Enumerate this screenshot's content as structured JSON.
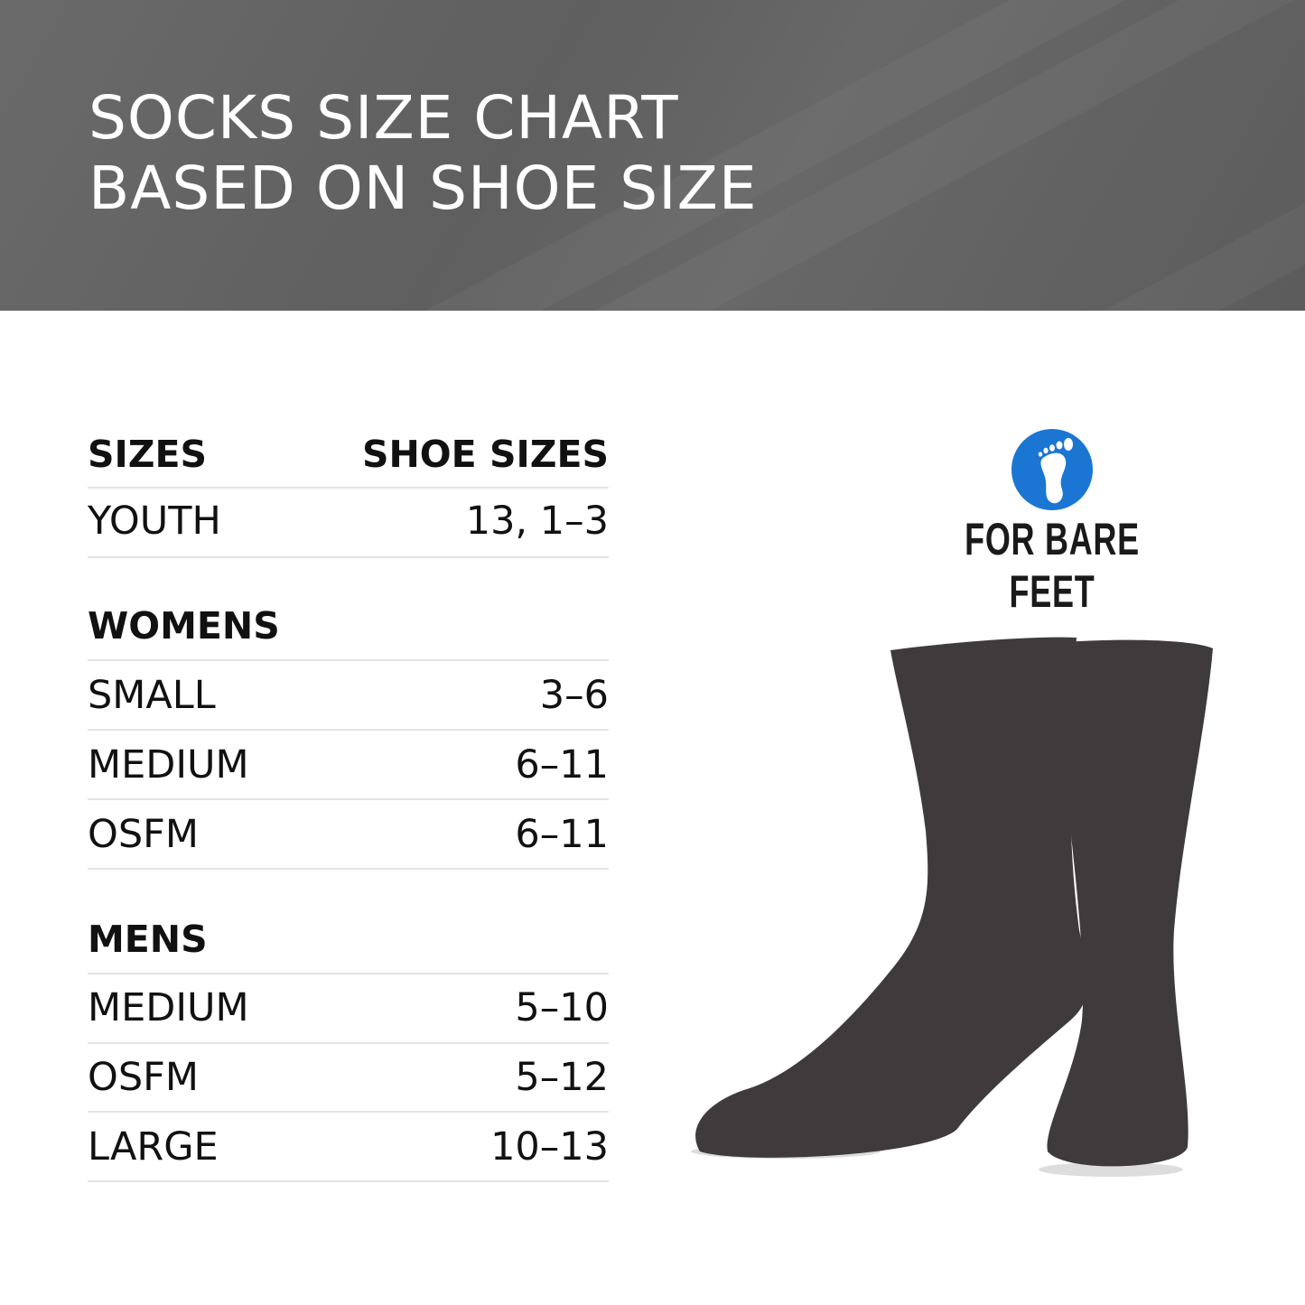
{
  "header": {
    "title_line1": "SOCKS SIZE CHART",
    "title_line2": "BASED ON SHOE SIZE"
  },
  "table": {
    "col_sizes": "SIZES",
    "col_shoe_sizes": "SHOE SIZES",
    "youth": {
      "label": "YOUTH",
      "value": "13, 1–3"
    },
    "womens": {
      "heading": "WOMENS",
      "rows": [
        {
          "label": "SMALL",
          "value": "3–6"
        },
        {
          "label": "MEDIUM",
          "value": "6–11"
        },
        {
          "label": "OSFM",
          "value": "6–11"
        }
      ]
    },
    "mens": {
      "heading": "MENS",
      "rows": [
        {
          "label": "MEDIUM",
          "value": "5–10"
        },
        {
          "label": "OSFM",
          "value": "5–12"
        },
        {
          "label": "LARGE",
          "value": "10–13"
        }
      ]
    }
  },
  "logo": {
    "text": "FOR BARE FEET",
    "icon": "footprint-icon",
    "color": "#1a76d2"
  },
  "colors": {
    "banner": "#646464",
    "sock": "#3f3b3c"
  }
}
